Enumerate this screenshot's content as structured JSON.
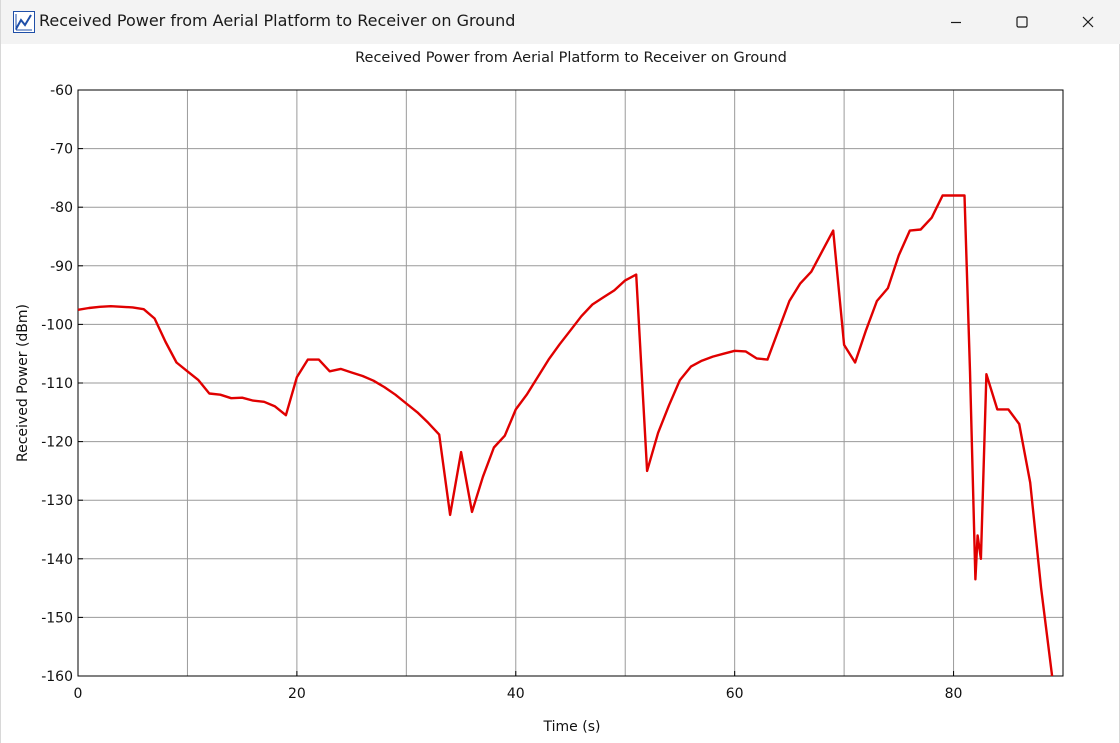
{
  "window": {
    "title": "Received Power from Aerial Platform to Receiver on Ground",
    "app_icon": "matlab-figure-icon",
    "controls": {
      "minimize_icon": "minimize-icon",
      "maximize_icon": "maximize-icon",
      "close_icon": "close-icon"
    }
  },
  "colors": {
    "series": "#e00000",
    "grid": "#9a9a9a",
    "axes": "#000000",
    "titlebar": "#f3f3f3"
  },
  "chart_data": {
    "type": "line",
    "title": "Received Power from Aerial Platform to Receiver on Ground",
    "xlabel": "Time (s)",
    "ylabel": "Received Power (dBm)",
    "xlim": [
      0,
      90
    ],
    "ylim": [
      -160,
      -60
    ],
    "xticks": [
      0,
      20,
      40,
      60,
      80
    ],
    "yticks": [
      -60,
      -70,
      -80,
      -90,
      -100,
      -110,
      -120,
      -130,
      -140,
      -150,
      -160
    ],
    "grid": true,
    "xtick_labels": [
      "0",
      "20",
      "40",
      "60",
      "80"
    ],
    "ytick_labels": [
      "-60",
      "-70",
      "-80",
      "-90",
      "-100",
      "-110",
      "-120",
      "-130",
      "-140",
      "-150",
      "-160"
    ],
    "series": [
      {
        "color": "#e00000",
        "x": [
          0,
          1,
          2,
          3,
          4,
          5,
          6,
          7,
          8,
          9,
          10,
          11,
          12,
          13,
          14,
          15,
          16,
          17,
          18,
          19,
          20,
          21,
          22,
          23,
          24,
          25,
          26,
          27,
          28,
          29,
          30,
          31,
          32,
          33,
          34,
          35,
          36,
          37,
          38,
          39,
          40,
          41,
          42,
          43,
          44,
          45,
          46,
          47,
          48,
          49,
          50,
          51,
          52,
          53,
          54,
          55,
          56,
          57,
          58,
          59,
          60,
          61,
          62,
          63,
          64,
          65,
          66,
          67,
          68,
          69,
          70,
          71,
          72,
          73,
          74,
          75,
          76,
          77,
          78,
          79,
          80,
          81,
          81.5,
          82,
          82.2,
          82.5,
          83,
          84,
          85,
          86,
          87,
          88,
          89
        ],
        "y": [
          -97.5,
          -97.2,
          -97,
          -96.9,
          -97,
          -97.1,
          -97.4,
          -99,
          -103,
          -106.5,
          -108,
          -109.5,
          -111.8,
          -112,
          -112.6,
          -112.5,
          -113,
          -113.2,
          -114,
          -115.5,
          -109,
          -106,
          -106,
          -108,
          -107.6,
          -108.2,
          -108.8,
          -109.6,
          -110.7,
          -112,
          -113.5,
          -115,
          -116.8,
          -118.8,
          -132.5,
          -121.8,
          -132,
          -126,
          -121,
          -119,
          -114.5,
          -112,
          -109,
          -106,
          -103.4,
          -101,
          -98.6,
          -96.6,
          -95.4,
          -94.2,
          -92.5,
          -91.5,
          -125,
          -118.5,
          -113.8,
          -109.5,
          -107.2,
          -106.2,
          -105.5,
          -105,
          -104.5,
          -104.6,
          -105.8,
          -106,
          -101,
          -96,
          -93,
          -91,
          -87.5,
          -84,
          -103.5,
          -106.5,
          -101,
          -96,
          -93.8,
          -88.2,
          -84,
          -83.8,
          -81.8,
          -78,
          -78,
          -78,
          -108,
          -143.5,
          -136,
          -140,
          -108.5,
          -114.5,
          -114.5,
          -117,
          -127,
          -145,
          -160
        ]
      }
    ]
  }
}
